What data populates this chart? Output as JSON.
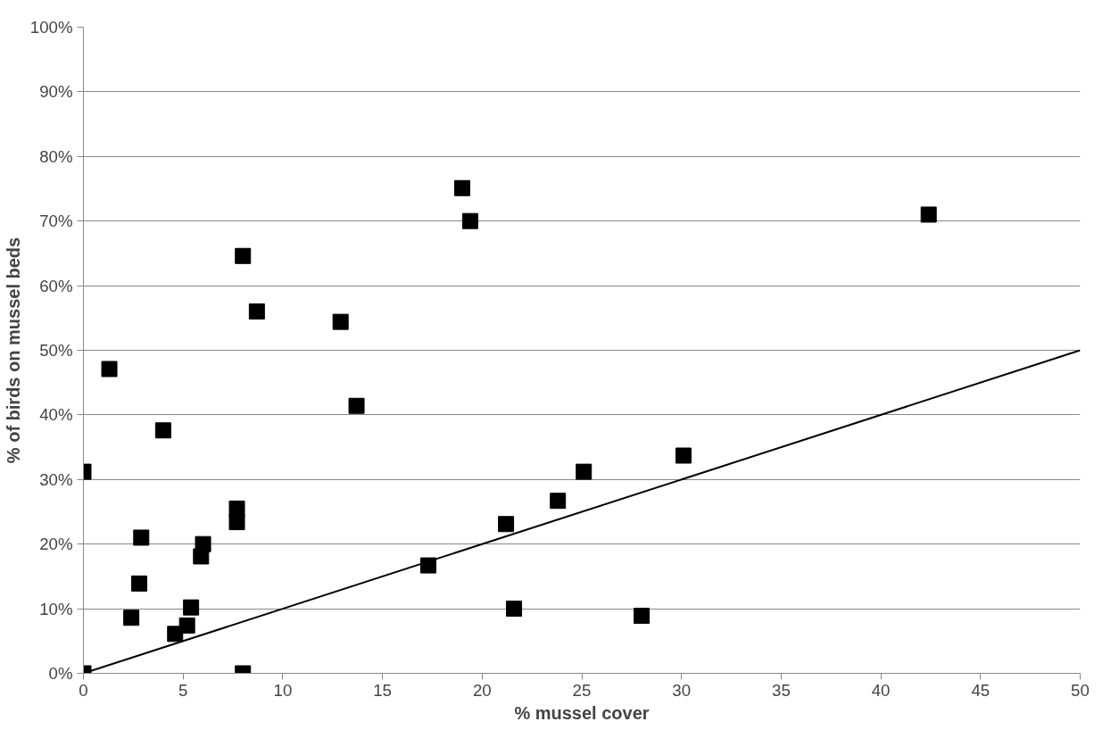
{
  "chart_data": {
    "type": "scatter",
    "xlabel": "% mussel cover",
    "ylabel": "% of birds on mussel beds",
    "xlim": [
      0,
      50
    ],
    "xticks": [
      0,
      5,
      10,
      15,
      20,
      25,
      30,
      35,
      40,
      45,
      50
    ],
    "ylim": [
      0,
      100
    ],
    "yticks": [
      {
        "value": 0,
        "label": "0%"
      },
      {
        "value": 10,
        "label": "10%"
      },
      {
        "value": 20,
        "label": "20%"
      },
      {
        "value": 30,
        "label": "30%"
      },
      {
        "value": 40,
        "label": "40%"
      },
      {
        "value": 50,
        "label": "50%"
      },
      {
        "value": 60,
        "label": "60%"
      },
      {
        "value": 70,
        "label": "70%"
      },
      {
        "value": 80,
        "label": "80%"
      },
      {
        "value": 90,
        "label": "90%"
      },
      {
        "value": 100,
        "label": "100%"
      }
    ],
    "grid": "y",
    "marker": "square",
    "series": [
      {
        "color": "#000000",
        "x": [
          0,
          0,
          1.3,
          4.0,
          2.9,
          2.8,
          2.4,
          4.6,
          5.2,
          5.4,
          5.9,
          6.0,
          7.7,
          7.7,
          8.0,
          8.0,
          8.7,
          12.9,
          13.7,
          17.3,
          19.0,
          19.4,
          21.2,
          21.6,
          23.8,
          25.1,
          28.0,
          30.1,
          42.4
        ],
        "values": [
          0,
          31.2,
          47.1,
          37.6,
          21.0,
          13.9,
          8.6,
          6.1,
          7.4,
          10.2,
          18.1,
          20.0,
          23.4,
          25.5,
          0,
          64.6,
          56.0,
          54.4,
          41.4,
          16.7,
          75.1,
          70.0,
          23.1,
          10.0,
          26.7,
          31.2,
          8.9,
          33.7,
          71.0
        ]
      },
      {
        "type": "line",
        "color": "#000000",
        "marker": "none",
        "x": [
          0,
          50
        ],
        "values": [
          0,
          50
        ]
      }
    ]
  }
}
